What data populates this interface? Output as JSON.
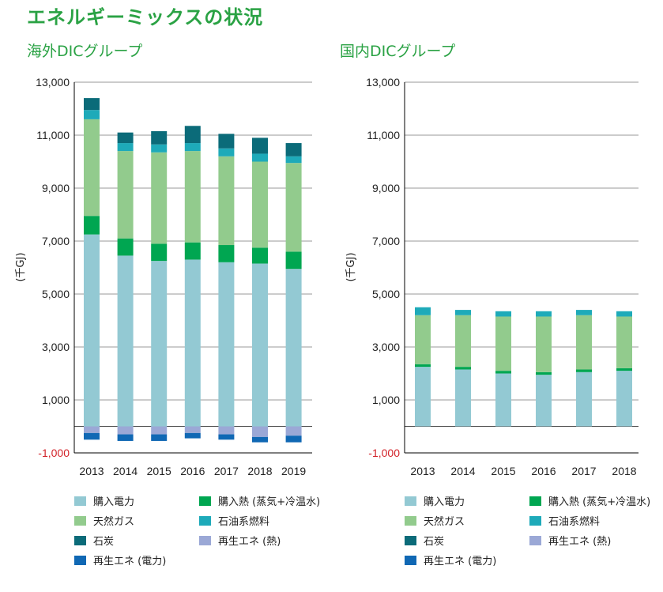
{
  "page_title": "エネルギーミックスの状況",
  "colors": {
    "grid": "#9a9a9a",
    "axis": "#000000"
  },
  "chart_data": [
    {
      "type": "bar",
      "stacked": true,
      "title": "海外DICグループ",
      "ylabel": "(千GJ)",
      "ylim": [
        -1000,
        13000
      ],
      "yticks": [
        "-1,000",
        "1,000",
        "3,000",
        "5,000",
        "7,000",
        "9,000",
        "11,000",
        "13,000"
      ],
      "categories": [
        "2013",
        "2014",
        "2015",
        "2016",
        "2017",
        "2018",
        "2019"
      ],
      "series": [
        {
          "name": "購入電力",
          "color": "#93c9d3",
          "values": [
            7250,
            6450,
            6250,
            6300,
            6200,
            6150,
            5950
          ]
        },
        {
          "name": "購入熱 (蒸気+冷温水)",
          "color": "#00a651",
          "values": [
            700,
            650,
            650,
            650,
            650,
            600,
            650
          ]
        },
        {
          "name": "天然ガス",
          "color": "#92cb8d",
          "values": [
            3650,
            3300,
            3450,
            3450,
            3350,
            3250,
            3350
          ]
        },
        {
          "name": "石油系燃料",
          "color": "#1eaab9",
          "values": [
            350,
            300,
            300,
            300,
            300,
            300,
            250
          ]
        },
        {
          "name": "石炭",
          "color": "#0b6b79",
          "values": [
            450,
            400,
            500,
            650,
            550,
            600,
            500
          ]
        },
        {
          "name": "再生エネ (熱)",
          "color": "#9ba8d6",
          "values": [
            -250,
            -300,
            -300,
            -250,
            -300,
            -400,
            -350
          ]
        },
        {
          "name": "再生エネ (電力)",
          "color": "#1068b4",
          "values": [
            -250,
            -250,
            -250,
            -200,
            -200,
            -200,
            -250
          ]
        }
      ]
    },
    {
      "type": "bar",
      "stacked": true,
      "title": "国内DICグループ",
      "ylabel": "(千GJ)",
      "ylim": [
        -1000,
        13000
      ],
      "yticks": [
        "-1,000",
        "1,000",
        "3,000",
        "5,000",
        "7,000",
        "9,000",
        "11,000",
        "13,000"
      ],
      "categories": [
        "2013",
        "2014",
        "2015",
        "2016",
        "2017",
        "2018"
      ],
      "series": [
        {
          "name": "購入電力",
          "color": "#93c9d3",
          "values": [
            2250,
            2150,
            2000,
            1950,
            2050,
            2100
          ]
        },
        {
          "name": "購入熱 (蒸気+冷温水)",
          "color": "#00a651",
          "values": [
            100,
            100,
            100,
            100,
            100,
            100
          ]
        },
        {
          "name": "天然ガス",
          "color": "#92cb8d",
          "values": [
            1850,
            1950,
            2050,
            2100,
            2050,
            1950
          ]
        },
        {
          "name": "石油系燃料",
          "color": "#1eaab9",
          "values": [
            300,
            200,
            200,
            200,
            200,
            200
          ]
        },
        {
          "name": "石炭",
          "color": "#0b6b79",
          "values": [
            0,
            0,
            0,
            0,
            0,
            0
          ]
        },
        {
          "name": "再生エネ (熱)",
          "color": "#9ba8d6",
          "values": [
            0,
            0,
            0,
            0,
            0,
            0
          ]
        },
        {
          "name": "再生エネ (電力)",
          "color": "#1068b4",
          "values": [
            0,
            0,
            0,
            0,
            0,
            0
          ]
        }
      ]
    }
  ],
  "legend": [
    {
      "label": "購入電力",
      "color": "#93c9d3"
    },
    {
      "label": "購入熱 (蒸気+冷温水)",
      "color": "#00a651"
    },
    {
      "label": "天然ガス",
      "color": "#92cb8d"
    },
    {
      "label": "石油系燃料",
      "color": "#1eaab9"
    },
    {
      "label": "石炭",
      "color": "#0b6b79"
    },
    {
      "label": "再生エネ (熱)",
      "color": "#9ba8d6"
    },
    {
      "label": "再生エネ (電力)",
      "color": "#1068b4"
    }
  ]
}
